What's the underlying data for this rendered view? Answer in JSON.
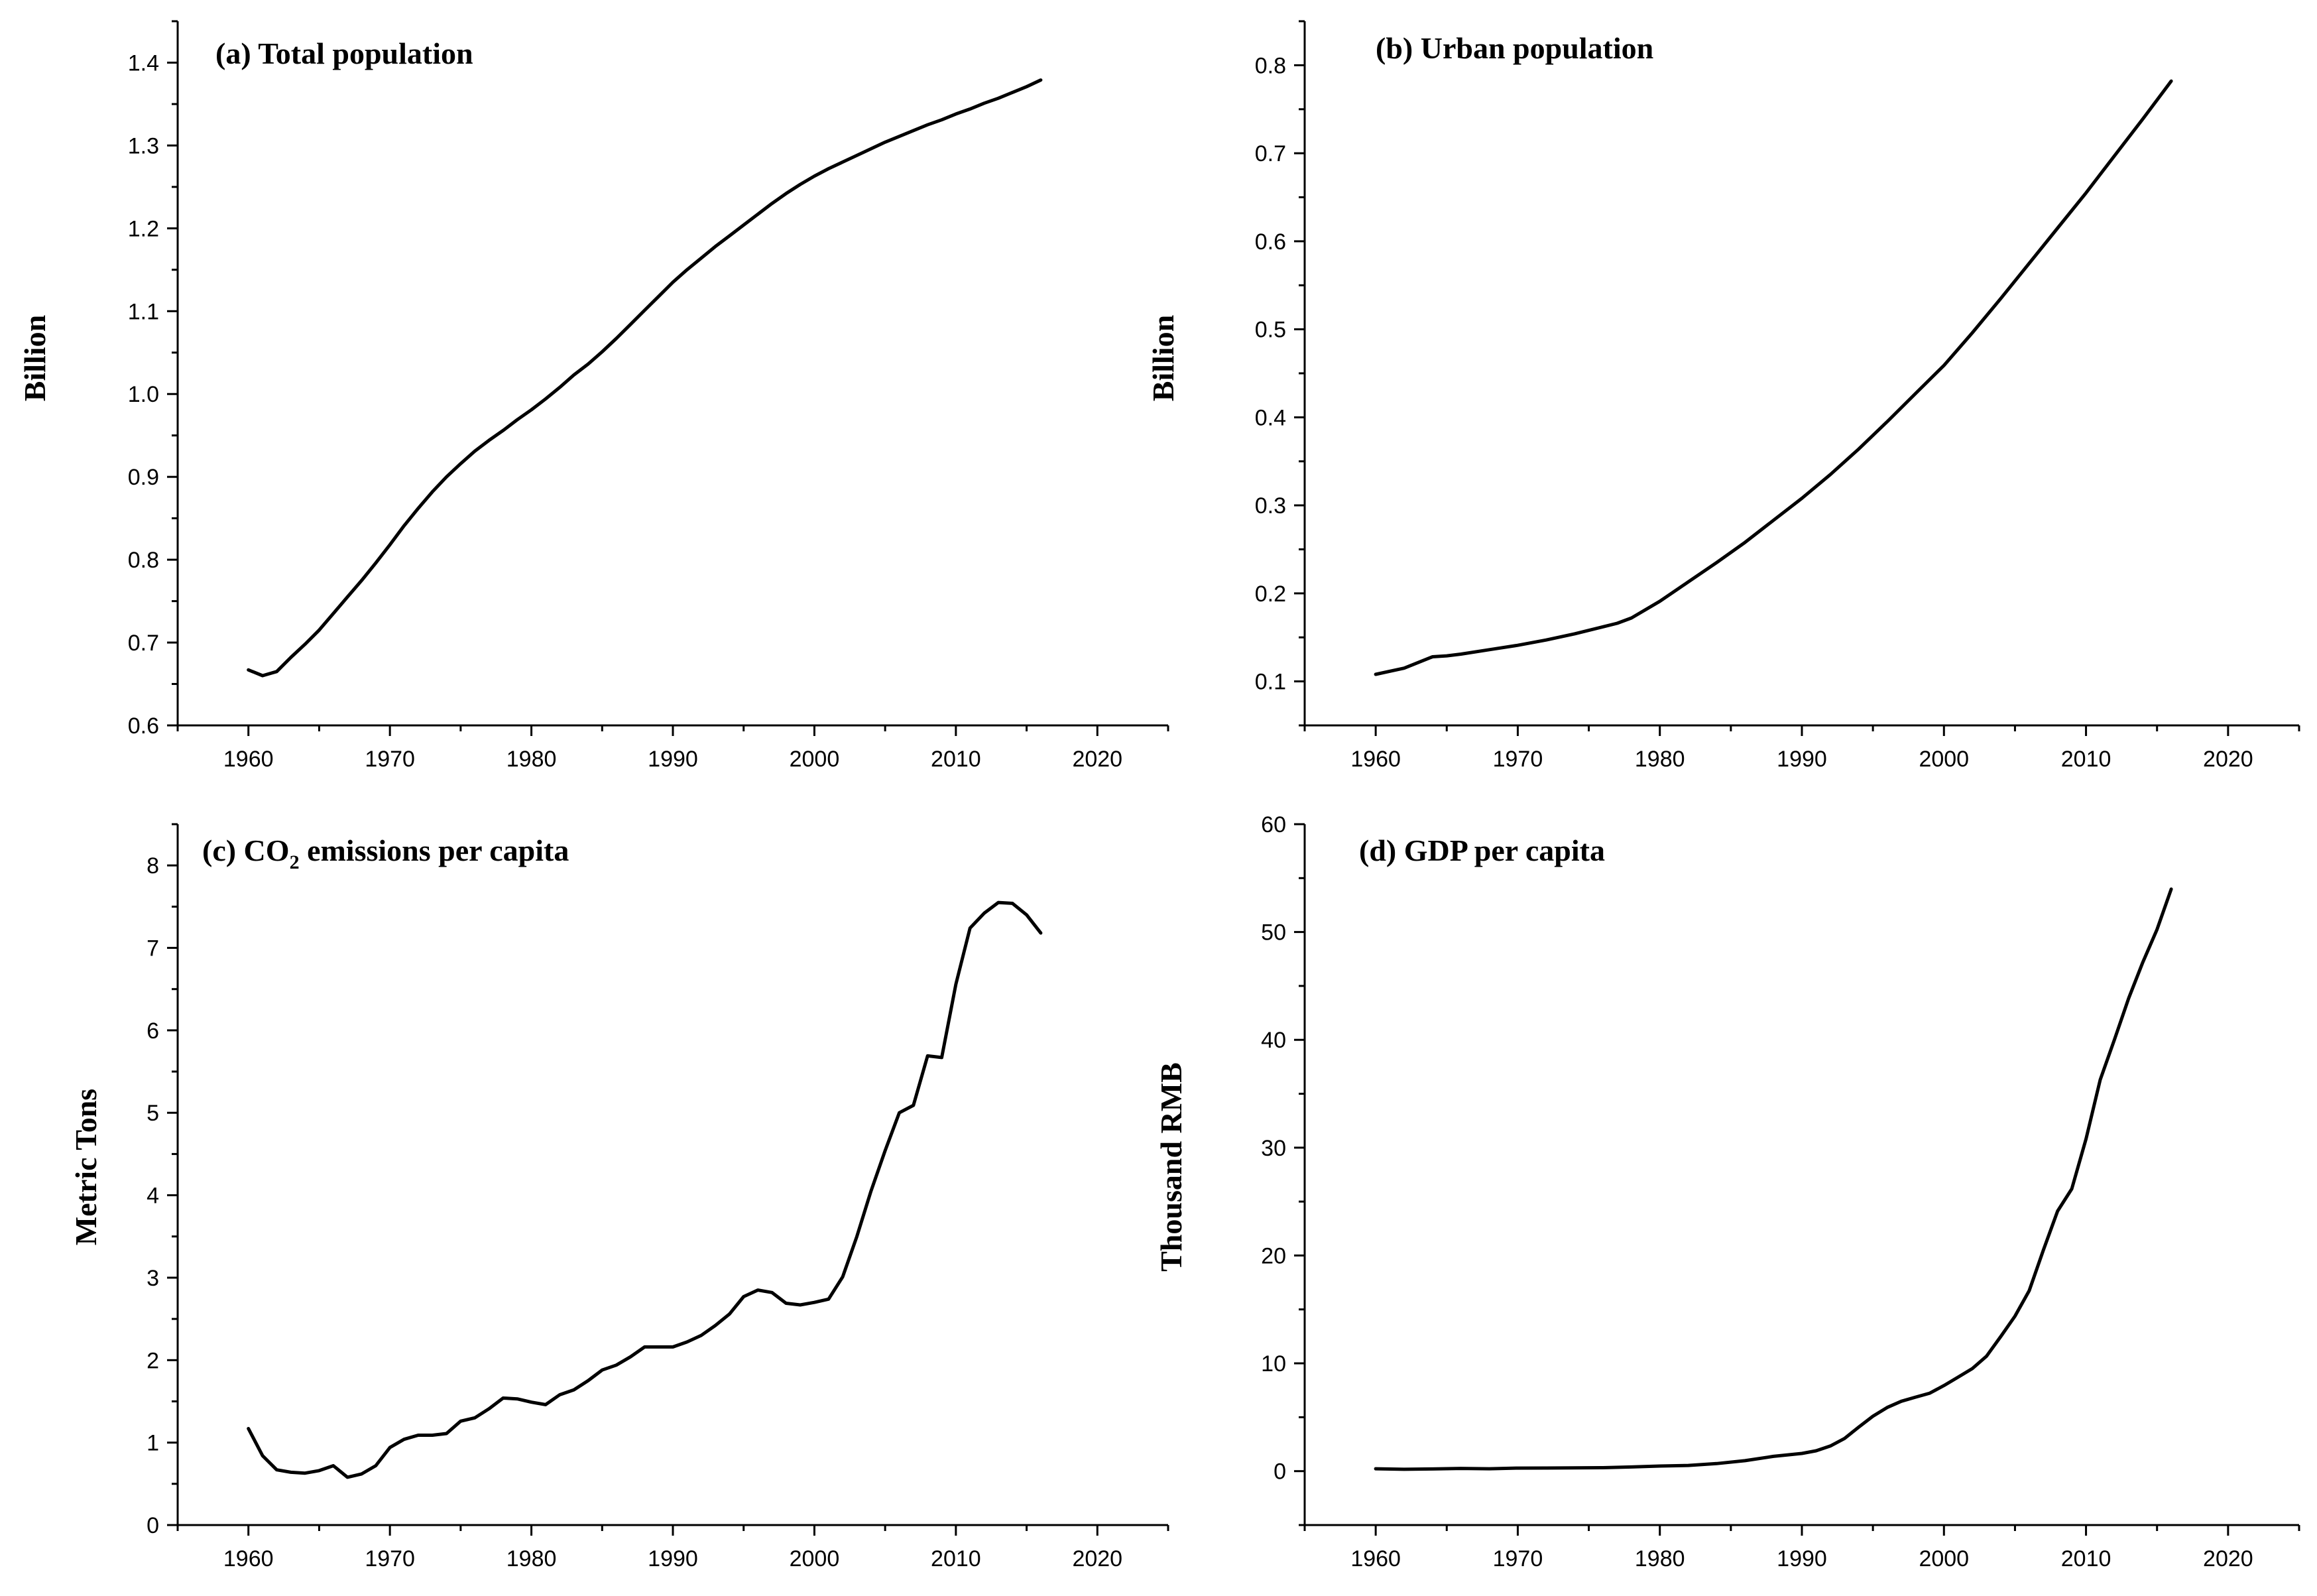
{
  "chart_data": [
    {
      "type": "line",
      "title": "(a) Total population",
      "xlabel": "",
      "ylabel": "Billion",
      "xlim": [
        1955,
        2025
      ],
      "ylim": [
        0.6,
        1.45
      ],
      "xticks": [
        1960,
        1970,
        1980,
        1990,
        2000,
        2010,
        2020
      ],
      "yticks": [
        0.6,
        0.7,
        0.8,
        0.9,
        1.0,
        1.1,
        1.2,
        1.3,
        1.4
      ],
      "ytick_labels": [
        "0.6",
        "0.7",
        "0.8",
        "0.9",
        "1.0",
        "1.1",
        "1.2",
        "1.3",
        "1.4"
      ],
      "x": [
        1960,
        1961,
        1962,
        1963,
        1964,
        1965,
        1966,
        1967,
        1968,
        1969,
        1970,
        1971,
        1972,
        1973,
        1974,
        1975,
        1976,
        1977,
        1978,
        1979,
        1980,
        1981,
        1982,
        1983,
        1984,
        1985,
        1986,
        1987,
        1988,
        1989,
        1990,
        1991,
        1992,
        1993,
        1994,
        1995,
        1996,
        1997,
        1998,
        1999,
        2000,
        2001,
        2002,
        2003,
        2004,
        2005,
        2006,
        2007,
        2008,
        2009,
        2010,
        2011,
        2012,
        2013,
        2014,
        2015,
        2016
      ],
      "y": [
        0.667,
        0.66,
        0.665,
        0.682,
        0.698,
        0.715,
        0.735,
        0.755,
        0.775,
        0.796,
        0.818,
        0.841,
        0.862,
        0.882,
        0.9,
        0.916,
        0.931,
        0.944,
        0.956,
        0.969,
        0.981,
        0.994,
        1.008,
        1.023,
        1.036,
        1.051,
        1.067,
        1.084,
        1.101,
        1.118,
        1.135,
        1.15,
        1.164,
        1.178,
        1.191,
        1.204,
        1.217,
        1.23,
        1.242,
        1.253,
        1.263,
        1.272,
        1.28,
        1.288,
        1.296,
        1.304,
        1.311,
        1.318,
        1.325,
        1.331,
        1.338,
        1.344,
        1.351,
        1.357,
        1.364,
        1.371,
        1.379
      ]
    },
    {
      "type": "line",
      "title": "(b) Urban population",
      "xlabel": "",
      "ylabel": "Billion",
      "xlim": [
        1955,
        2025
      ],
      "ylim": [
        0.05,
        0.85
      ],
      "xticks": [
        1960,
        1970,
        1980,
        1990,
        2000,
        2010,
        2020
      ],
      "yticks": [
        0.1,
        0.2,
        0.3,
        0.4,
        0.5,
        0.6,
        0.7,
        0.8
      ],
      "ytick_labels": [
        "0.1",
        "0.2",
        "0.3",
        "0.4",
        "0.5",
        "0.6",
        "0.7",
        "0.8"
      ],
      "x": [
        1960,
        1962,
        1964,
        1965,
        1966,
        1968,
        1970,
        1972,
        1974,
        1976,
        1977,
        1978,
        1980,
        1982,
        1984,
        1986,
        1988,
        1990,
        1992,
        1994,
        1996,
        1998,
        2000,
        2002,
        2004,
        2006,
        2008,
        2010,
        2012,
        2014,
        2016
      ],
      "y": [
        0.108,
        0.115,
        0.128,
        0.129,
        0.131,
        0.136,
        0.141,
        0.147,
        0.154,
        0.162,
        0.166,
        0.172,
        0.191,
        0.213,
        0.235,
        0.258,
        0.283,
        0.308,
        0.335,
        0.364,
        0.395,
        0.427,
        0.459,
        0.496,
        0.535,
        0.575,
        0.615,
        0.655,
        0.697,
        0.739,
        0.782
      ]
    },
    {
      "type": "line",
      "title": "(c)  CO",
      "title_subscript": "2",
      "title_suffix": " emissions per capita",
      "xlabel": "",
      "ylabel": "Metric Tons",
      "xlim": [
        1955,
        2025
      ],
      "ylim": [
        0,
        8.5
      ],
      "xticks": [
        1960,
        1970,
        1980,
        1990,
        2000,
        2010,
        2020
      ],
      "yticks": [
        0,
        1,
        2,
        3,
        4,
        5,
        6,
        7,
        8
      ],
      "ytick_labels": [
        "0",
        "1",
        "2",
        "3",
        "4",
        "5",
        "6",
        "7",
        "8"
      ],
      "x": [
        1960,
        1961,
        1962,
        1963,
        1964,
        1965,
        1966,
        1967,
        1968,
        1969,
        1970,
        1971,
        1972,
        1973,
        1974,
        1975,
        1976,
        1977,
        1978,
        1979,
        1980,
        1981,
        1982,
        1983,
        1984,
        1985,
        1986,
        1987,
        1988,
        1989,
        1990,
        1991,
        1992,
        1993,
        1994,
        1995,
        1996,
        1997,
        1998,
        1999,
        2000,
        2001,
        2002,
        2003,
        2004,
        2005,
        2006,
        2007,
        2008,
        2009,
        2010,
        2011,
        2012,
        2013,
        2014,
        2015,
        2016
      ],
      "y": [
        1.17,
        0.84,
        0.67,
        0.64,
        0.63,
        0.66,
        0.72,
        0.58,
        0.62,
        0.72,
        0.94,
        1.04,
        1.09,
        1.09,
        1.11,
        1.26,
        1.3,
        1.41,
        1.54,
        1.53,
        1.49,
        1.46,
        1.58,
        1.64,
        1.75,
        1.88,
        1.94,
        2.04,
        2.16,
        2.16,
        2.16,
        2.22,
        2.3,
        2.42,
        2.56,
        2.77,
        2.85,
        2.82,
        2.69,
        2.67,
        2.7,
        2.74,
        3.01,
        3.5,
        4.05,
        4.54,
        5.0,
        5.09,
        5.69,
        5.67,
        6.56,
        7.24,
        7.42,
        7.55,
        7.54,
        7.4,
        7.18
      ]
    },
    {
      "type": "line",
      "title": "(d) GDP per capita",
      "xlabel": "",
      "ylabel": "Thousand RMB",
      "xlim": [
        1955,
        2025
      ],
      "ylim": [
        -5,
        60
      ],
      "xticks": [
        1960,
        1970,
        1980,
        1990,
        2000,
        2010,
        2020
      ],
      "yticks": [
        0,
        10,
        20,
        30,
        40,
        50,
        60
      ],
      "ytick_labels": [
        "0",
        "10",
        "20",
        "30",
        "40",
        "50",
        "60"
      ],
      "x": [
        1960,
        1962,
        1964,
        1966,
        1968,
        1970,
        1972,
        1974,
        1976,
        1978,
        1980,
        1982,
        1984,
        1986,
        1988,
        1990,
        1991,
        1992,
        1993,
        1994,
        1995,
        1996,
        1997,
        1998,
        1999,
        2000,
        2001,
        2002,
        2003,
        2004,
        2005,
        2006,
        2007,
        2008,
        2009,
        2010,
        2011,
        2012,
        2013,
        2014,
        2015,
        2016
      ],
      "y": [
        0.22,
        0.17,
        0.2,
        0.25,
        0.22,
        0.28,
        0.29,
        0.31,
        0.32,
        0.39,
        0.47,
        0.53,
        0.7,
        0.97,
        1.37,
        1.64,
        1.89,
        2.33,
        3.03,
        4.08,
        5.09,
        5.9,
        6.48,
        6.86,
        7.23,
        7.94,
        8.72,
        9.51,
        10.67,
        12.49,
        14.37,
        16.74,
        20.51,
        24.12,
        26.18,
        30.81,
        36.3,
        40.01,
        43.85,
        47.2,
        50.24,
        53.98
      ]
    }
  ]
}
